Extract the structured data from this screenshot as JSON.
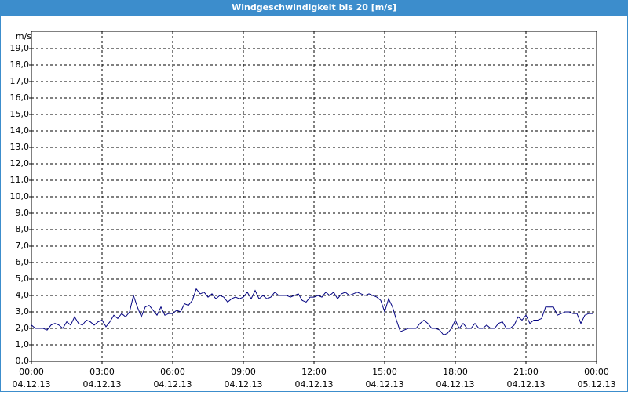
{
  "chart_data": {
    "type": "line",
    "title": "Windgeschwindigkeit bis 20 [m/s]",
    "y_label": "m/s",
    "color": "#000080",
    "grid": true,
    "ylim": [
      0,
      20
    ],
    "yticks": [
      {
        "value": 0,
        "label": "0,0"
      },
      {
        "value": 1,
        "label": "1,0"
      },
      {
        "value": 2,
        "label": "2,0"
      },
      {
        "value": 3,
        "label": "3,0"
      },
      {
        "value": 4,
        "label": "4,0"
      },
      {
        "value": 5,
        "label": "5,0"
      },
      {
        "value": 6,
        "label": "6,0"
      },
      {
        "value": 7,
        "label": "7,0"
      },
      {
        "value": 8,
        "label": "8,0"
      },
      {
        "value": 9,
        "label": "9,0"
      },
      {
        "value": 10,
        "label": "10,0"
      },
      {
        "value": 11,
        "label": "11,0"
      },
      {
        "value": 12,
        "label": "12,0"
      },
      {
        "value": 13,
        "label": "13,0"
      },
      {
        "value": 14,
        "label": "14,0"
      },
      {
        "value": 15,
        "label": "15,0"
      },
      {
        "value": 16,
        "label": "16,0"
      },
      {
        "value": 17,
        "label": "17,0"
      },
      {
        "value": 18,
        "label": "18,0"
      },
      {
        "value": 19,
        "label": "19,0"
      }
    ],
    "xlim": [
      0,
      1440
    ],
    "xticks": [
      {
        "value": 0,
        "label": "00:00",
        "date": "04.12.13"
      },
      {
        "value": 180,
        "label": "03:00",
        "date": "04.12.13"
      },
      {
        "value": 360,
        "label": "06:00",
        "date": "04.12.13"
      },
      {
        "value": 540,
        "label": "09:00",
        "date": "04.12.13"
      },
      {
        "value": 720,
        "label": "12:00",
        "date": "04.12.13"
      },
      {
        "value": 900,
        "label": "15:00",
        "date": "04.12.13"
      },
      {
        "value": 1080,
        "label": "18:00",
        "date": "04.12.13"
      },
      {
        "value": 1260,
        "label": "21:00",
        "date": "04.12.13"
      },
      {
        "value": 1440,
        "label": "00:00",
        "date": "05.12.13"
      }
    ],
    "x": [
      0,
      10,
      20,
      30,
      40,
      50,
      60,
      70,
      80,
      90,
      100,
      110,
      120,
      130,
      140,
      150,
      160,
      170,
      180,
      190,
      200,
      210,
      220,
      230,
      240,
      250,
      260,
      270,
      280,
      290,
      300,
      310,
      320,
      330,
      340,
      350,
      360,
      370,
      380,
      390,
      400,
      410,
      420,
      430,
      440,
      450,
      460,
      470,
      480,
      490,
      500,
      510,
      520,
      530,
      540,
      550,
      560,
      570,
      580,
      590,
      600,
      610,
      620,
      630,
      640,
      650,
      660,
      670,
      680,
      690,
      700,
      710,
      720,
      730,
      740,
      750,
      760,
      770,
      780,
      790,
      800,
      810,
      820,
      830,
      840,
      850,
      860,
      870,
      880,
      890,
      900,
      910,
      920,
      930,
      940,
      950,
      960,
      970,
      980,
      990,
      1000,
      1010,
      1020,
      1030,
      1040,
      1050,
      1060,
      1070,
      1080,
      1090,
      1100,
      1110,
      1120,
      1130,
      1140,
      1150,
      1160,
      1170,
      1180,
      1190,
      1200,
      1210,
      1220,
      1230,
      1240,
      1250,
      1260,
      1270,
      1280,
      1290,
      1300,
      1310,
      1320,
      1330,
      1340,
      1350,
      1360,
      1370,
      1380,
      1390,
      1400,
      1410,
      1420,
      1430
    ],
    "values": [
      2.2,
      2.0,
      2.0,
      2.0,
      1.9,
      2.2,
      2.3,
      2.2,
      2.0,
      2.4,
      2.2,
      2.7,
      2.3,
      2.2,
      2.5,
      2.4,
      2.2,
      2.4,
      2.5,
      2.1,
      2.4,
      2.8,
      2.6,
      2.9,
      2.7,
      3.0,
      4.0,
      3.3,
      2.7,
      3.3,
      3.4,
      3.1,
      2.8,
      3.3,
      2.8,
      2.9,
      2.9,
      3.1,
      3.0,
      3.5,
      3.4,
      3.7,
      4.4,
      4.1,
      4.2,
      3.9,
      4.1,
      3.8,
      4.0,
      3.9,
      3.6,
      3.8,
      3.9,
      3.8,
      3.9,
      4.2,
      3.8,
      4.3,
      3.8,
      4.0,
      3.8,
      3.9,
      4.2,
      4.0,
      4.0,
      4.0,
      3.9,
      4.0,
      4.1,
      3.7,
      3.6,
      3.9,
      3.9,
      4.0,
      3.9,
      4.2,
      4.0,
      4.2,
      3.8,
      4.1,
      4.2,
      4.0,
      4.1,
      4.2,
      4.1,
      4.0,
      4.1,
      4.0,
      3.9,
      3.7,
      3.0,
      3.8,
      3.3,
      2.5,
      1.8,
      1.9,
      2.0,
      2.0,
      2.0,
      2.3,
      2.5,
      2.3,
      2.0,
      2.0,
      1.9,
      1.6,
      1.7,
      2.0,
      2.5,
      2.0,
      2.3,
      2.0,
      2.0,
      2.3,
      2.0,
      2.0,
      2.2,
      2.0,
      2.0,
      2.3,
      2.4,
      2.0,
      2.0,
      2.2,
      2.7,
      2.5,
      2.8,
      2.3,
      2.5,
      2.5,
      2.6,
      3.3,
      3.3,
      3.3,
      2.8,
      2.9,
      3.0,
      3.0,
      2.9,
      2.9,
      2.3,
      2.8,
      2.9,
      2.9
    ]
  }
}
